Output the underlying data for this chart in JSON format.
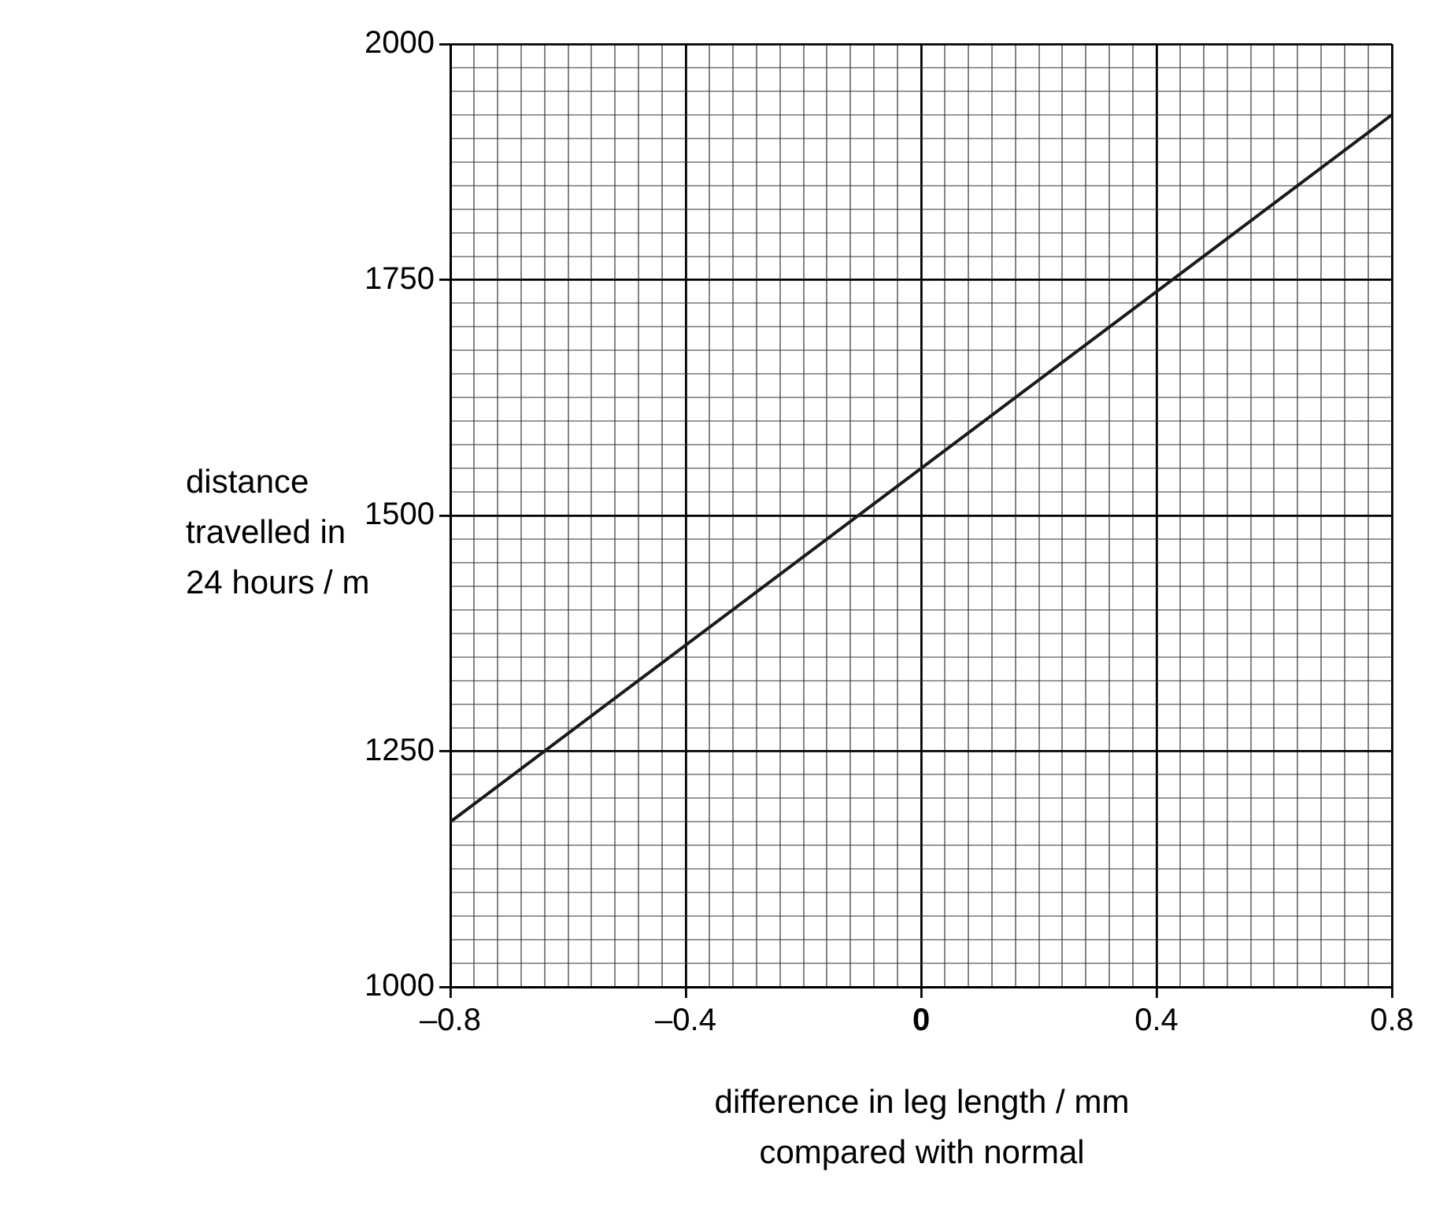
{
  "chart_data": {
    "type": "line",
    "xlabel": "difference in leg length / mm\ncompared with normal",
    "ylabel": "distance\ntravelled in\n24 hours / m",
    "series": [
      {
        "color": "#1a1a1a",
        "x": [
          -0.8,
          0.8
        ],
        "values": [
          1175,
          1925
        ]
      }
    ],
    "xlim": [
      -0.8,
      0.8
    ],
    "ylim": [
      1000,
      2000
    ],
    "xticks": [
      {
        "value": -0.8,
        "label": "–0.8"
      },
      {
        "value": -0.76,
        "label": null
      },
      {
        "value": -0.72,
        "label": null
      },
      {
        "value": -0.68,
        "label": null
      },
      {
        "value": -0.64,
        "label": null
      },
      {
        "value": -0.6,
        "label": null
      },
      {
        "value": -0.56,
        "label": null
      },
      {
        "value": -0.52,
        "label": null
      },
      {
        "value": -0.48,
        "label": null
      },
      {
        "value": -0.44,
        "label": null
      },
      {
        "value": -0.4,
        "label": "–0.4"
      },
      {
        "value": -0.36,
        "label": null
      },
      {
        "value": -0.32,
        "label": null
      },
      {
        "value": -0.28,
        "label": null
      },
      {
        "value": -0.24,
        "label": null
      },
      {
        "value": -0.2,
        "label": null
      },
      {
        "value": -0.16,
        "label": null
      },
      {
        "value": -0.12,
        "label": null
      },
      {
        "value": -0.08,
        "label": null
      },
      {
        "value": -0.04,
        "label": null
      },
      0,
      {
        "value": 0.04,
        "label": null
      },
      {
        "value": 0.08,
        "label": null
      },
      {
        "value": 0.12,
        "label": null
      },
      {
        "value": 0.16,
        "label": null
      },
      {
        "value": 0.2,
        "label": null
      },
      {
        "value": 0.24,
        "label": null
      },
      {
        "value": 0.28,
        "label": null
      },
      {
        "value": 0.32,
        "label": null
      },
      {
        "value": 0.36,
        "label": null
      },
      0.4,
      {
        "value": 0.44,
        "label": null
      },
      {
        "value": 0.48,
        "label": null
      },
      {
        "value": 0.52,
        "label": null
      },
      {
        "value": 0.56,
        "label": null
      },
      {
        "value": 0.6,
        "label": null
      },
      {
        "value": 0.64,
        "label": null
      },
      {
        "value": 0.68,
        "label": null
      },
      {
        "value": 0.72,
        "label": null
      },
      {
        "value": 0.76,
        "label": null
      },
      0.8
    ],
    "yticks": [
      1000,
      {
        "value": 1025,
        "label": null
      },
      {
        "value": 1050,
        "label": null
      },
      {
        "value": 1075,
        "label": null
      },
      {
        "value": 1100,
        "label": null
      },
      {
        "value": 1125,
        "label": null
      },
      {
        "value": 1150,
        "label": null
      },
      {
        "value": 1175,
        "label": null
      },
      {
        "value": 1200,
        "label": null
      },
      {
        "value": 1225,
        "label": null
      },
      1250,
      {
        "value": 1275,
        "label": null
      },
      {
        "value": 1300,
        "label": null
      },
      {
        "value": 1325,
        "label": null
      },
      {
        "value": 1350,
        "label": null
      },
      {
        "value": 1375,
        "label": null
      },
      {
        "value": 1400,
        "label": null
      },
      {
        "value": 1425,
        "label": null
      },
      {
        "value": 1450,
        "label": null
      },
      {
        "value": 1475,
        "label": null
      },
      1500,
      {
        "value": 1525,
        "label": null
      },
      {
        "value": 1550,
        "label": null
      },
      {
        "value": 1575,
        "label": null
      },
      {
        "value": 1600,
        "label": null
      },
      {
        "value": 1625,
        "label": null
      },
      {
        "value": 1650,
        "label": null
      },
      {
        "value": 1675,
        "label": null
      },
      {
        "value": 1700,
        "label": null
      },
      {
        "value": 1725,
        "label": null
      },
      1750,
      {
        "value": 1775,
        "label": null
      },
      {
        "value": 1800,
        "label": null
      },
      {
        "value": 1825,
        "label": null
      },
      {
        "value": 1850,
        "label": null
      },
      {
        "value": 1875,
        "label": null
      },
      {
        "value": 1900,
        "label": null
      },
      {
        "value": 1925,
        "label": null
      },
      {
        "value": 1950,
        "label": null
      },
      {
        "value": 1975,
        "label": null
      },
      2000
    ],
    "grid": true,
    "legend": false,
    "marker": "none",
    "line_style": "solid"
  }
}
